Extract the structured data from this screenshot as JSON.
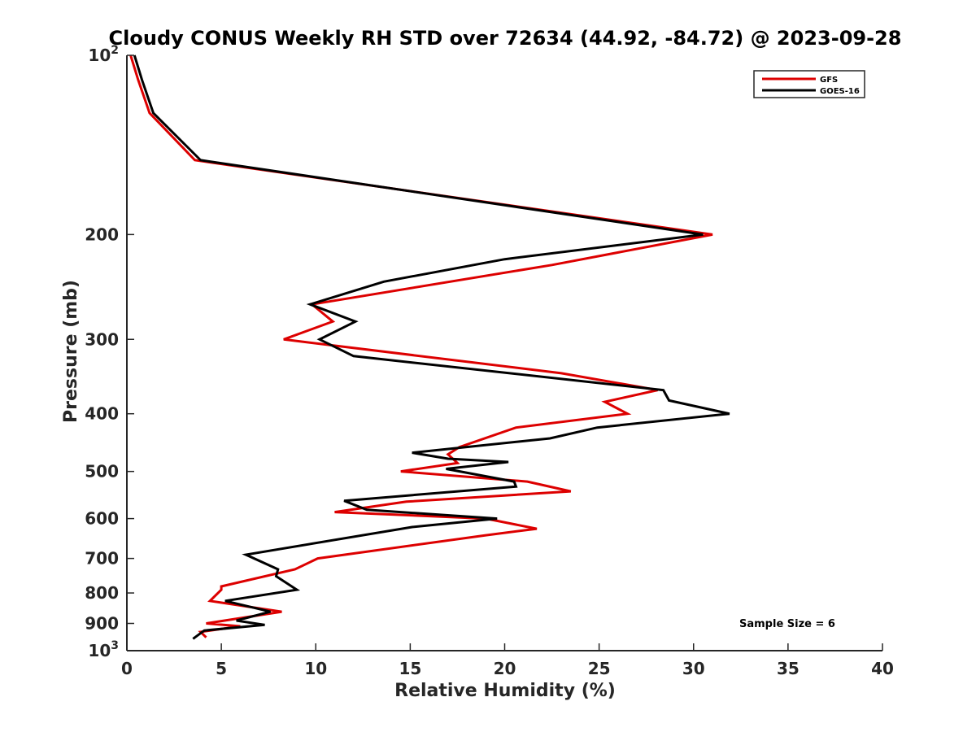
{
  "chart_data": {
    "type": "line",
    "title": "Cloudy CONUS Weekly RH STD over 72634 (44.92, -84.72) @ 2023-09-28",
    "xlabel": "Relative Humidity (%)",
    "ylabel": "Pressure (mb)",
    "xlim": [
      0,
      40
    ],
    "ylim": [
      100,
      1000
    ],
    "y_scale": "log",
    "y_reversed": true,
    "x_ticks": [
      0,
      5,
      10,
      15,
      20,
      25,
      30,
      35,
      40
    ],
    "x_tick_labels": [
      "0",
      "5",
      "10",
      "15",
      "20",
      "25",
      "30",
      "35",
      "40"
    ],
    "y_ticks": [
      100,
      200,
      300,
      400,
      500,
      600,
      700,
      800,
      900,
      1000
    ],
    "y_tick_labels": [
      {
        "base": "10",
        "exp": "2"
      },
      {
        "base": "200"
      },
      {
        "base": "300"
      },
      {
        "base": "400"
      },
      {
        "base": "500"
      },
      {
        "base": "600"
      },
      {
        "base": "700"
      },
      {
        "base": "800"
      },
      {
        "base": "900"
      },
      {
        "base": "10",
        "exp": "3"
      }
    ],
    "grid": false,
    "legend_position": "top-right",
    "annotation": "Sample Size = 6",
    "series": [
      {
        "name": "GFS",
        "color": "#dd0000",
        "points": [
          [
            0.2,
            100
          ],
          [
            0.6,
            110
          ],
          [
            1.2,
            125
          ],
          [
            3.6,
            150
          ],
          [
            31.0,
            200
          ],
          [
            22.5,
            225
          ],
          [
            9.8,
            262
          ],
          [
            10.9,
            280
          ],
          [
            8.3,
            300
          ],
          [
            23.0,
            342
          ],
          [
            28.1,
            365
          ],
          [
            25.3,
            382
          ],
          [
            26.5,
            400
          ],
          [
            20.6,
            422
          ],
          [
            17.6,
            455
          ],
          [
            17.0,
            468
          ],
          [
            17.5,
            484
          ],
          [
            14.5,
            500
          ],
          [
            21.2,
            520
          ],
          [
            23.5,
            540
          ],
          [
            14.8,
            562
          ],
          [
            11.0,
            585
          ],
          [
            19.0,
            600
          ],
          [
            21.7,
            624
          ],
          [
            19.0,
            640
          ],
          [
            10.1,
            700
          ],
          [
            8.9,
            730
          ],
          [
            5.0,
            780
          ],
          [
            5.0,
            790
          ],
          [
            4.4,
            825
          ],
          [
            8.2,
            860
          ],
          [
            4.2,
            900
          ],
          [
            6.0,
            910
          ],
          [
            3.9,
            930
          ],
          [
            4.2,
            950
          ]
        ]
      },
      {
        "name": "GOES-16",
        "color": "#000000",
        "points": [
          [
            0.4,
            100
          ],
          [
            0.8,
            110
          ],
          [
            1.4,
            125
          ],
          [
            3.9,
            150
          ],
          [
            30.5,
            200
          ],
          [
            20.0,
            220
          ],
          [
            13.6,
            240
          ],
          [
            9.7,
            262
          ],
          [
            12.1,
            280
          ],
          [
            10.2,
            300
          ],
          [
            12.0,
            320
          ],
          [
            28.4,
            365
          ],
          [
            28.7,
            380
          ],
          [
            31.9,
            400
          ],
          [
            24.9,
            422
          ],
          [
            22.4,
            440
          ],
          [
            15.1,
            465
          ],
          [
            17.0,
            476
          ],
          [
            20.2,
            482
          ],
          [
            16.9,
            495
          ],
          [
            20.5,
            520
          ],
          [
            20.6,
            530
          ],
          [
            11.5,
            560
          ],
          [
            12.7,
            580
          ],
          [
            19.6,
            600
          ],
          [
            15.1,
            620
          ],
          [
            6.3,
            690
          ],
          [
            8.0,
            730
          ],
          [
            7.9,
            750
          ],
          [
            9.0,
            790
          ],
          [
            5.2,
            825
          ],
          [
            7.6,
            860
          ],
          [
            5.8,
            890
          ],
          [
            7.3,
            905
          ],
          [
            4.1,
            925
          ],
          [
            3.5,
            955
          ]
        ]
      }
    ]
  }
}
